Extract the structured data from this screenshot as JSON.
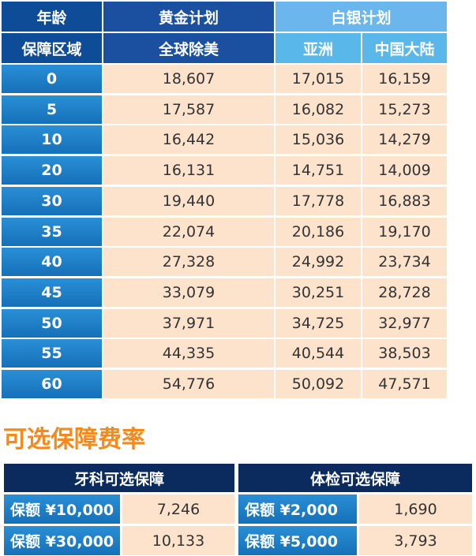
{
  "table": {
    "header": {
      "age": "年龄",
      "gold": "黄金计划",
      "silver": "白银计划",
      "region": "保障区域",
      "gold_region": "全球除美",
      "silver_regions": [
        "亚洲",
        "中国大陆"
      ]
    },
    "rows": [
      [
        "0",
        "18,607",
        "17,015",
        "16,159"
      ],
      [
        "5",
        "17,587",
        "16,082",
        "15,273"
      ],
      [
        "10",
        "16,442",
        "15,036",
        "14,279"
      ],
      [
        "20",
        "16,131",
        "14,751",
        "14,009"
      ],
      [
        "30",
        "19,440",
        "17,778",
        "16,883"
      ],
      [
        "35",
        "22,074",
        "20,186",
        "19,170"
      ],
      [
        "40",
        "27,328",
        "24,992",
        "23,734"
      ],
      [
        "45",
        "33,079",
        "30,251",
        "28,728"
      ],
      [
        "50",
        "37,971",
        "34,725",
        "32,977"
      ],
      [
        "55",
        "44,335",
        "40,544",
        "38,503"
      ],
      [
        "60",
        "54,776",
        "50,092",
        "47,571"
      ]
    ]
  },
  "optional": {
    "title": "可选保障费率",
    "groups": [
      {
        "title": "牙科可选保障",
        "rows": [
          [
            "保额 ¥10,000",
            "7,246"
          ],
          [
            "保额 ¥30,000",
            "10,133"
          ]
        ]
      },
      {
        "title": "体检可选保障",
        "rows": [
          [
            "保额 ¥2,000",
            "1,690"
          ],
          [
            "保额 ¥5,000",
            "3,793"
          ]
        ]
      }
    ]
  }
}
